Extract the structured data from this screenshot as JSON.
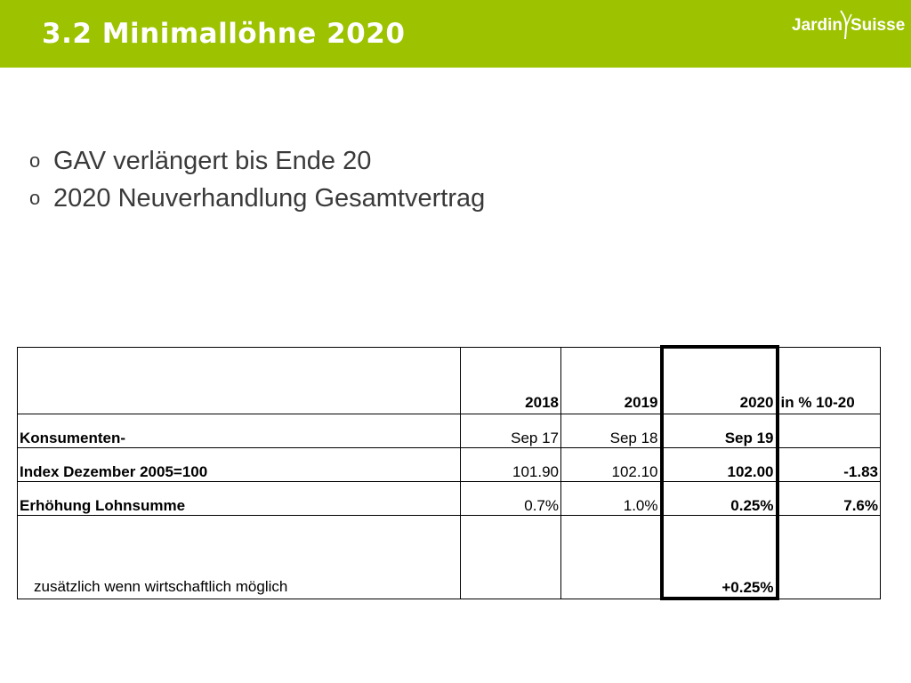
{
  "header": {
    "title": "3.2 Minimallöhne 2020",
    "logo_left": "Jardin",
    "logo_right": "Suisse",
    "color": "#9cc200"
  },
  "bullets": [
    {
      "marker": "o",
      "text": "GAV verlängert bis Ende 20"
    },
    {
      "marker": "o",
      "text": "2020 Neuverhandlung Gesamtvertrag"
    }
  ],
  "table": {
    "header": {
      "label": "",
      "y2018": "2018",
      "y2019": "2019",
      "y2020": "2020",
      "pct": "in % 10-20"
    },
    "rows": [
      {
        "label": "Konsumenten-",
        "v2018": "Sep 17",
        "v2019": "Sep 18",
        "v2020": "Sep 19",
        "pct": ""
      },
      {
        "label": "Index Dezember 2005=100",
        "v2018": "101.90",
        "v2019": "102.10",
        "v2020": "102.00",
        "pct": "-1.83"
      },
      {
        "label": "Erhöhung Lohnsumme",
        "v2018": "0.7%",
        "v2019": "1.0%",
        "v2020": "0.25%",
        "pct": "7.6%"
      },
      {
        "label": "zusätzlich wenn wirtschaftlich möglich",
        "v2018": "",
        "v2019": "",
        "v2020": "+0.25%",
        "pct": ""
      }
    ],
    "accent_green": "#1a9a38"
  }
}
